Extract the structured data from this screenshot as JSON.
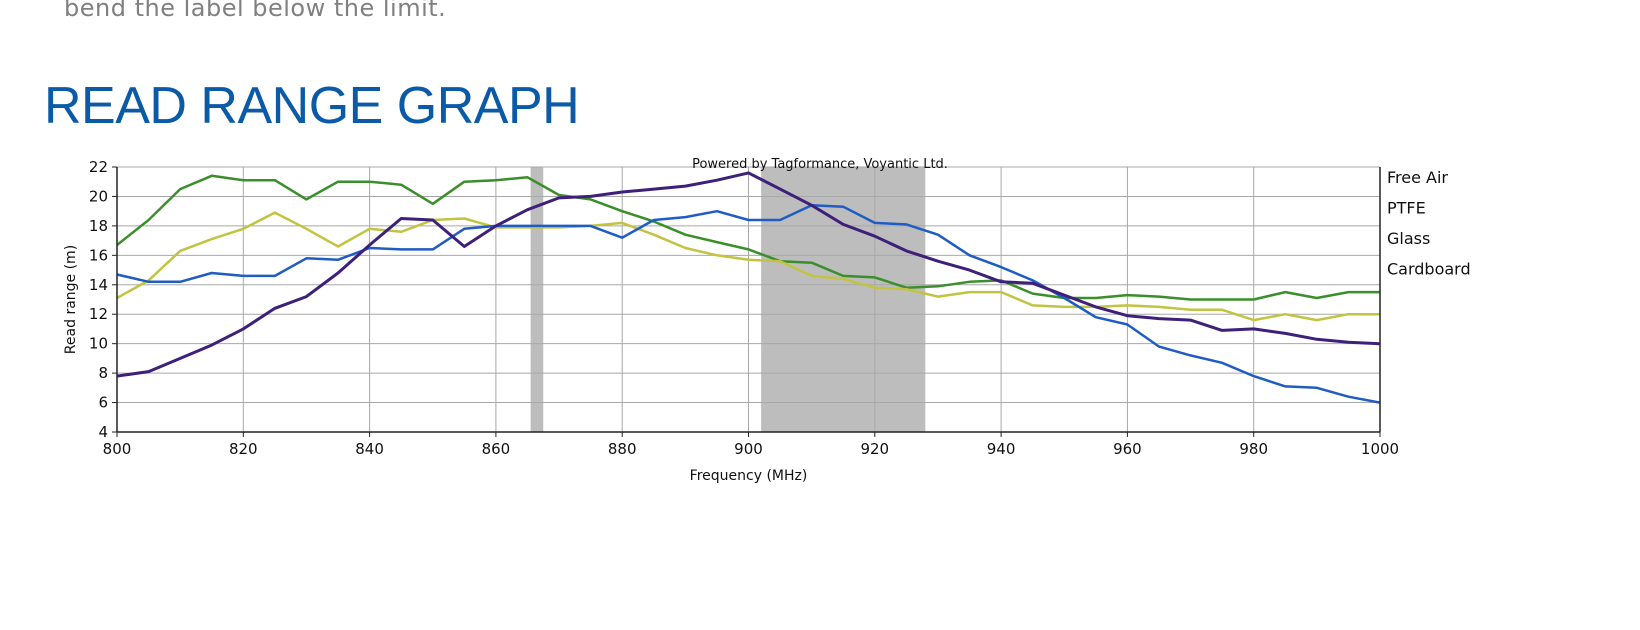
{
  "page": {
    "intro_text": "bend the label below the limit.",
    "section_title": "READ RANGE GRAPH"
  },
  "chart_data": {
    "type": "line",
    "title": "Powered by Tagformance, Voyantic Ltd.",
    "xlabel": "Frequency (MHz)",
    "ylabel": "Read range (m)",
    "xlim": [
      800,
      1000
    ],
    "ylim": [
      4,
      22
    ],
    "xticks": [
      800,
      820,
      840,
      860,
      880,
      900,
      920,
      940,
      960,
      980,
      1000
    ],
    "yticks": [
      4,
      6,
      8,
      10,
      12,
      14,
      16,
      18,
      20,
      22
    ],
    "grid": true,
    "legend_position": "right",
    "shaded_bands": [
      [
        865.5,
        867.5
      ],
      [
        902,
        928
      ]
    ],
    "shade_color": "#bdbdbd",
    "series": [
      {
        "name": "Free Air",
        "color": "#3a8f2a",
        "points": [
          [
            800,
            16.7
          ],
          [
            805,
            18.4
          ],
          [
            810,
            20.5
          ],
          [
            815,
            21.4
          ],
          [
            820,
            21.1
          ],
          [
            825,
            21.1
          ],
          [
            830,
            19.8
          ],
          [
            835,
            21.0
          ],
          [
            840,
            21.0
          ],
          [
            845,
            20.8
          ],
          [
            850,
            19.5
          ],
          [
            855,
            21.0
          ],
          [
            860,
            21.1
          ],
          [
            865,
            21.3
          ],
          [
            870,
            20.1
          ],
          [
            875,
            19.8
          ],
          [
            880,
            19.0
          ],
          [
            885,
            18.3
          ],
          [
            890,
            17.4
          ],
          [
            895,
            16.9
          ],
          [
            900,
            16.4
          ],
          [
            905,
            15.6
          ],
          [
            910,
            15.5
          ],
          [
            915,
            14.6
          ],
          [
            920,
            14.5
          ],
          [
            925,
            13.8
          ],
          [
            930,
            13.9
          ],
          [
            935,
            14.2
          ],
          [
            940,
            14.3
          ],
          [
            945,
            13.4
          ],
          [
            950,
            13.1
          ],
          [
            955,
            13.1
          ],
          [
            960,
            13.3
          ],
          [
            965,
            13.2
          ],
          [
            970,
            13.0
          ],
          [
            975,
            13.0
          ],
          [
            980,
            13.0
          ],
          [
            985,
            13.5
          ],
          [
            990,
            13.1
          ],
          [
            995,
            13.5
          ],
          [
            1000,
            13.5
          ]
        ]
      },
      {
        "name": "PTFE",
        "color": "#c2c441",
        "points": [
          [
            800,
            13.1
          ],
          [
            805,
            14.3
          ],
          [
            810,
            16.3
          ],
          [
            815,
            17.1
          ],
          [
            820,
            17.8
          ],
          [
            825,
            18.9
          ],
          [
            830,
            17.8
          ],
          [
            835,
            16.6
          ],
          [
            840,
            17.8
          ],
          [
            845,
            17.6
          ],
          [
            850,
            18.4
          ],
          [
            855,
            18.5
          ],
          [
            860,
            17.9
          ],
          [
            865,
            17.9
          ],
          [
            870,
            17.9
          ],
          [
            875,
            18.0
          ],
          [
            880,
            18.2
          ],
          [
            885,
            17.4
          ],
          [
            890,
            16.5
          ],
          [
            895,
            16.0
          ],
          [
            900,
            15.7
          ],
          [
            905,
            15.6
          ],
          [
            910,
            14.6
          ],
          [
            915,
            14.4
          ],
          [
            920,
            13.8
          ],
          [
            925,
            13.7
          ],
          [
            930,
            13.2
          ],
          [
            935,
            13.5
          ],
          [
            940,
            13.5
          ],
          [
            945,
            12.6
          ],
          [
            950,
            12.5
          ],
          [
            955,
            12.5
          ],
          [
            960,
            12.6
          ],
          [
            965,
            12.5
          ],
          [
            970,
            12.3
          ],
          [
            975,
            12.3
          ],
          [
            980,
            11.6
          ],
          [
            985,
            12.0
          ],
          [
            990,
            11.6
          ],
          [
            995,
            12.0
          ],
          [
            1000,
            12.0
          ]
        ]
      },
      {
        "name": "Glass",
        "color": "#1f5cc4",
        "points": [
          [
            800,
            14.7
          ],
          [
            805,
            14.2
          ],
          [
            810,
            14.2
          ],
          [
            815,
            14.8
          ],
          [
            820,
            14.6
          ],
          [
            825,
            14.6
          ],
          [
            830,
            15.8
          ],
          [
            835,
            15.7
          ],
          [
            840,
            16.5
          ],
          [
            845,
            16.4
          ],
          [
            850,
            16.4
          ],
          [
            855,
            17.8
          ],
          [
            860,
            18.0
          ],
          [
            865,
            18.0
          ],
          [
            870,
            18.0
          ],
          [
            875,
            18.0
          ],
          [
            880,
            17.2
          ],
          [
            885,
            18.4
          ],
          [
            890,
            18.6
          ],
          [
            895,
            19.0
          ],
          [
            900,
            18.4
          ],
          [
            905,
            18.4
          ],
          [
            910,
            19.4
          ],
          [
            915,
            19.3
          ],
          [
            920,
            18.2
          ],
          [
            925,
            18.1
          ],
          [
            930,
            17.4
          ],
          [
            935,
            16.0
          ],
          [
            940,
            15.2
          ],
          [
            945,
            14.3
          ],
          [
            950,
            13.1
          ],
          [
            955,
            11.8
          ],
          [
            960,
            11.3
          ],
          [
            965,
            9.8
          ],
          [
            970,
            9.2
          ],
          [
            975,
            8.7
          ],
          [
            980,
            7.8
          ],
          [
            985,
            7.1
          ],
          [
            990,
            7.0
          ],
          [
            995,
            6.4
          ],
          [
            1000,
            6.0
          ]
        ]
      },
      {
        "name": "Cardboard",
        "color": "#3e1f7a",
        "points": [
          [
            800,
            7.8
          ],
          [
            805,
            8.1
          ],
          [
            810,
            9.0
          ],
          [
            815,
            9.9
          ],
          [
            820,
            11.0
          ],
          [
            825,
            12.4
          ],
          [
            830,
            13.2
          ],
          [
            835,
            14.8
          ],
          [
            840,
            16.7
          ],
          [
            845,
            18.5
          ],
          [
            850,
            18.4
          ],
          [
            855,
            16.6
          ],
          [
            860,
            18.0
          ],
          [
            865,
            19.1
          ],
          [
            870,
            19.9
          ],
          [
            875,
            20.0
          ],
          [
            880,
            20.3
          ],
          [
            885,
            20.5
          ],
          [
            890,
            20.7
          ],
          [
            895,
            21.1
          ],
          [
            900,
            21.6
          ],
          [
            905,
            20.5
          ],
          [
            910,
            19.4
          ],
          [
            915,
            18.1
          ],
          [
            920,
            17.3
          ],
          [
            925,
            16.3
          ],
          [
            930,
            15.6
          ],
          [
            935,
            15.0
          ],
          [
            940,
            14.2
          ],
          [
            945,
            14.1
          ],
          [
            950,
            13.3
          ],
          [
            955,
            12.5
          ],
          [
            960,
            11.9
          ],
          [
            965,
            11.7
          ],
          [
            970,
            11.6
          ],
          [
            975,
            10.9
          ],
          [
            980,
            11.0
          ],
          [
            985,
            10.7
          ],
          [
            990,
            10.3
          ],
          [
            995,
            10.1
          ],
          [
            1000,
            10.0
          ]
        ]
      }
    ]
  }
}
